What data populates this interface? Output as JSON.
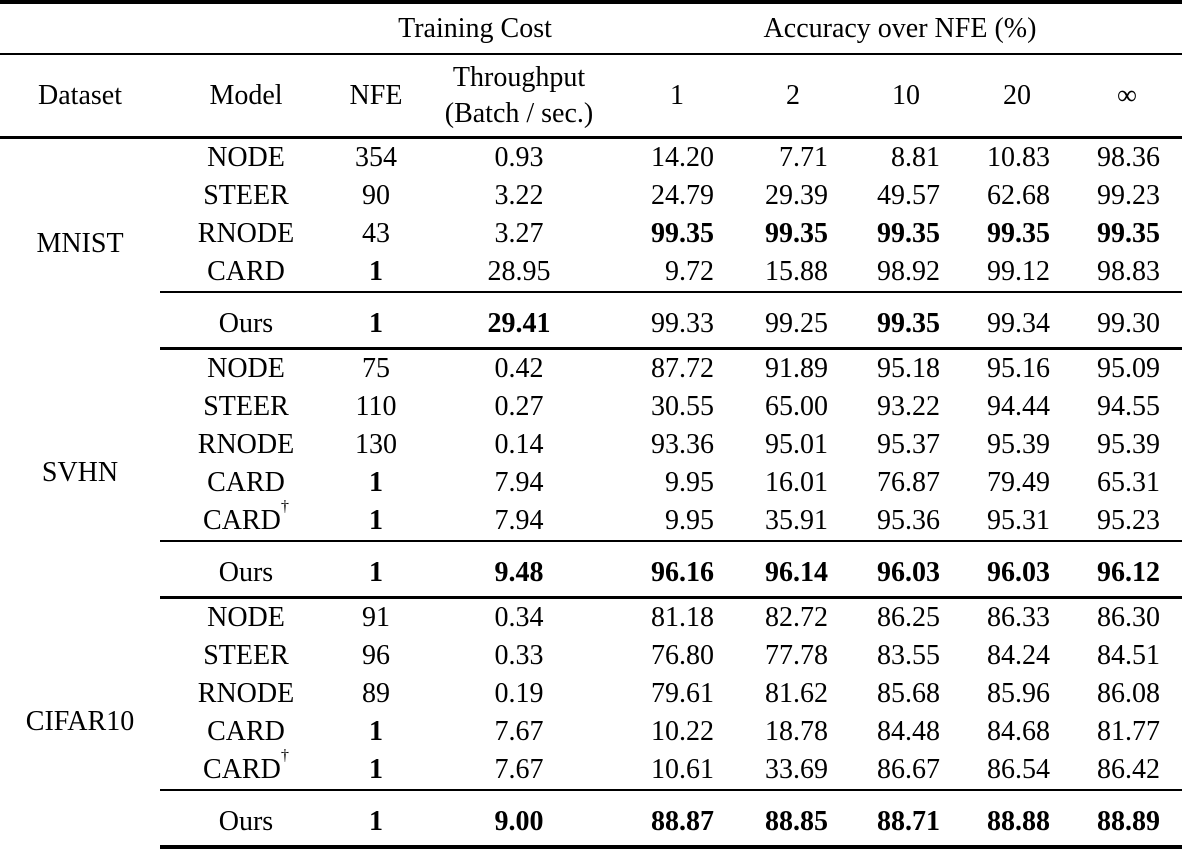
{
  "table": {
    "group_header": {
      "training_cost": "Training Cost",
      "accuracy_over_nfe": "Accuracy over NFE (%)"
    },
    "column_headers": {
      "dataset": "Dataset",
      "model": "Model",
      "nfe": "NFE",
      "throughput_line1": "Throughput",
      "throughput_line2": "(Batch / sec.)",
      "nfe_ticks": [
        "1",
        "2",
        "10",
        "20",
        "∞"
      ]
    },
    "sections": [
      {
        "dataset": "MNIST",
        "rows": [
          {
            "model": "NODE",
            "sup": "",
            "nfe": "354",
            "nfe_bold": false,
            "throughput": "0.93",
            "throughput_bold": false,
            "acc": [
              "14.20",
              "7.71",
              "8.81",
              "10.83",
              "98.36"
            ],
            "acc_bold": [
              false,
              false,
              false,
              false,
              false
            ]
          },
          {
            "model": "STEER",
            "sup": "",
            "nfe": "90",
            "nfe_bold": false,
            "throughput": "3.22",
            "throughput_bold": false,
            "acc": [
              "24.79",
              "29.39",
              "49.57",
              "62.68",
              "99.23"
            ],
            "acc_bold": [
              false,
              false,
              false,
              false,
              false
            ]
          },
          {
            "model": "RNODE",
            "sup": "",
            "nfe": "43",
            "nfe_bold": false,
            "throughput": "3.27",
            "throughput_bold": false,
            "acc": [
              "99.35",
              "99.35",
              "99.35",
              "99.35",
              "99.35"
            ],
            "acc_bold": [
              true,
              true,
              true,
              true,
              true
            ]
          },
          {
            "model": "CARD",
            "sup": "",
            "nfe": "1",
            "nfe_bold": true,
            "throughput": "28.95",
            "throughput_bold": false,
            "acc": [
              "9.72",
              "15.88",
              "98.92",
              "99.12",
              "98.83"
            ],
            "acc_bold": [
              false,
              false,
              false,
              false,
              false
            ]
          }
        ],
        "ours": {
          "model": "Ours",
          "sup": "",
          "nfe": "1",
          "nfe_bold": true,
          "throughput": "29.41",
          "throughput_bold": true,
          "acc": [
            "99.33",
            "99.25",
            "99.35",
            "99.34",
            "99.30"
          ],
          "acc_bold": [
            false,
            false,
            true,
            false,
            false
          ]
        }
      },
      {
        "dataset": "SVHN",
        "rows": [
          {
            "model": "NODE",
            "sup": "",
            "nfe": "75",
            "nfe_bold": false,
            "throughput": "0.42",
            "throughput_bold": false,
            "acc": [
              "87.72",
              "91.89",
              "95.18",
              "95.16",
              "95.09"
            ],
            "acc_bold": [
              false,
              false,
              false,
              false,
              false
            ]
          },
          {
            "model": "STEER",
            "sup": "",
            "nfe": "110",
            "nfe_bold": false,
            "throughput": "0.27",
            "throughput_bold": false,
            "acc": [
              "30.55",
              "65.00",
              "93.22",
              "94.44",
              "94.55"
            ],
            "acc_bold": [
              false,
              false,
              false,
              false,
              false
            ]
          },
          {
            "model": "RNODE",
            "sup": "",
            "nfe": "130",
            "nfe_bold": false,
            "throughput": "0.14",
            "throughput_bold": false,
            "acc": [
              "93.36",
              "95.01",
              "95.37",
              "95.39",
              "95.39"
            ],
            "acc_bold": [
              false,
              false,
              false,
              false,
              false
            ]
          },
          {
            "model": "CARD",
            "sup": "",
            "nfe": "1",
            "nfe_bold": true,
            "throughput": "7.94",
            "throughput_bold": false,
            "acc": [
              "9.95",
              "16.01",
              "76.87",
              "79.49",
              "65.31"
            ],
            "acc_bold": [
              false,
              false,
              false,
              false,
              false
            ]
          },
          {
            "model": "CARD",
            "sup": "†",
            "nfe": "1",
            "nfe_bold": true,
            "throughput": "7.94",
            "throughput_bold": false,
            "acc": [
              "9.95",
              "35.91",
              "95.36",
              "95.31",
              "95.23"
            ],
            "acc_bold": [
              false,
              false,
              false,
              false,
              false
            ]
          }
        ],
        "ours": {
          "model": "Ours",
          "sup": "",
          "nfe": "1",
          "nfe_bold": true,
          "throughput": "9.48",
          "throughput_bold": true,
          "acc": [
            "96.16",
            "96.14",
            "96.03",
            "96.03",
            "96.12"
          ],
          "acc_bold": [
            true,
            true,
            true,
            true,
            true
          ]
        }
      },
      {
        "dataset": "CIFAR10",
        "rows": [
          {
            "model": "NODE",
            "sup": "",
            "nfe": "91",
            "nfe_bold": false,
            "throughput": "0.34",
            "throughput_bold": false,
            "acc": [
              "81.18",
              "82.72",
              "86.25",
              "86.33",
              "86.30"
            ],
            "acc_bold": [
              false,
              false,
              false,
              false,
              false
            ]
          },
          {
            "model": "STEER",
            "sup": "",
            "nfe": "96",
            "nfe_bold": false,
            "throughput": "0.33",
            "throughput_bold": false,
            "acc": [
              "76.80",
              "77.78",
              "83.55",
              "84.24",
              "84.51"
            ],
            "acc_bold": [
              false,
              false,
              false,
              false,
              false
            ]
          },
          {
            "model": "RNODE",
            "sup": "",
            "nfe": "89",
            "nfe_bold": false,
            "throughput": "0.19",
            "throughput_bold": false,
            "acc": [
              "79.61",
              "81.62",
              "85.68",
              "85.96",
              "86.08"
            ],
            "acc_bold": [
              false,
              false,
              false,
              false,
              false
            ]
          },
          {
            "model": "CARD",
            "sup": "",
            "nfe": "1",
            "nfe_bold": true,
            "throughput": "7.67",
            "throughput_bold": false,
            "acc": [
              "10.22",
              "18.78",
              "84.48",
              "84.68",
              "81.77"
            ],
            "acc_bold": [
              false,
              false,
              false,
              false,
              false
            ]
          },
          {
            "model": "CARD",
            "sup": "†",
            "nfe": "1",
            "nfe_bold": true,
            "throughput": "7.67",
            "throughput_bold": false,
            "acc": [
              "10.61",
              "33.69",
              "86.67",
              "86.54",
              "86.42"
            ],
            "acc_bold": [
              false,
              false,
              false,
              false,
              false
            ]
          }
        ],
        "ours": {
          "model": "Ours",
          "sup": "",
          "nfe": "1",
          "nfe_bold": true,
          "throughput": "9.00",
          "throughput_bold": true,
          "acc": [
            "88.87",
            "88.85",
            "88.71",
            "88.88",
            "88.89"
          ],
          "acc_bold": [
            true,
            true,
            true,
            true,
            true
          ]
        }
      }
    ]
  }
}
